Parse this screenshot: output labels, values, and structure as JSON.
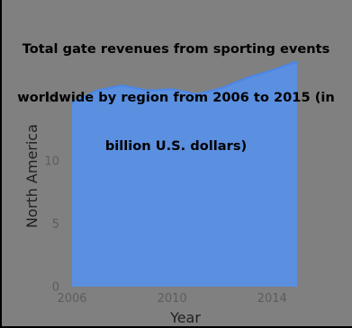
{
  "chart_data": {
    "type": "area",
    "title": "Total gate revenues from sporting events worldwide by region from 2006 to 2015 (in billion U.S. dollars)",
    "title_lines": [
      "Total gate revenues from sporting events",
      "worldwide by region from 2006 to 2015 (in",
      "billion U.S. dollars)"
    ],
    "xlabel": "Year",
    "ylabel": "North America",
    "x": [
      2006,
      2007,
      2008,
      2009,
      2010,
      2011,
      2012,
      2013,
      2014,
      2015
    ],
    "series": [
      {
        "values": [
          14.6,
          15.6,
          16.0,
          15.6,
          15.7,
          15.3,
          15.8,
          16.6,
          17.2,
          17.9
        ]
      }
    ],
    "xlim": [
      2005.8,
      2015.8
    ],
    "ylim": [
      0,
      18.5
    ],
    "xticks": [
      2006,
      2010,
      2014
    ],
    "yticks": [
      0,
      5,
      10,
      15
    ],
    "grid": false,
    "colors": {
      "fill": "#5b8fdf",
      "line": "#4a86e8",
      "background": "#808080",
      "tick_text": "#5c5c5c",
      "axis_text": "#1f1f1f"
    }
  }
}
